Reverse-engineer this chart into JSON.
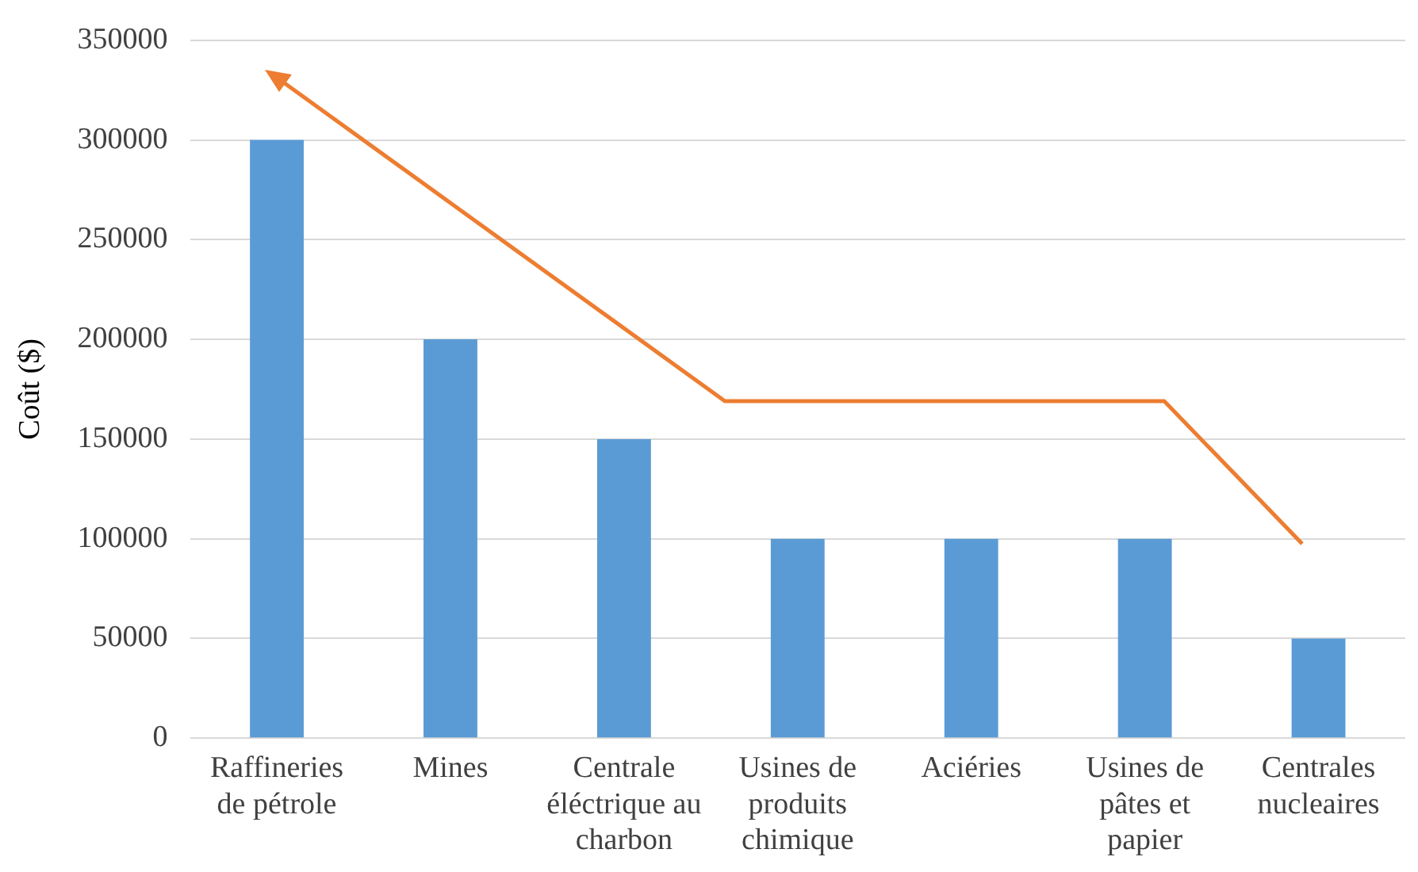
{
  "chart_data": {
    "type": "bar",
    "ylabel": "Coût ($)",
    "categories": [
      "Raffineries de pétrole",
      "Mines",
      "Centrale éléctrique au charbon",
      "Usines de produits chimique",
      "Aciéries",
      "Usines de pâtes et papier",
      "Centrales nucleaires"
    ],
    "values": [
      300000,
      200000,
      150000,
      100000,
      100000,
      100000,
      50000
    ],
    "color": "#5b9bd5",
    "ylim": [
      0,
      350000
    ],
    "yticks": [
      0,
      50000,
      100000,
      150000,
      200000,
      250000,
      300000,
      350000
    ],
    "grid": "y",
    "legend": false
  }
}
